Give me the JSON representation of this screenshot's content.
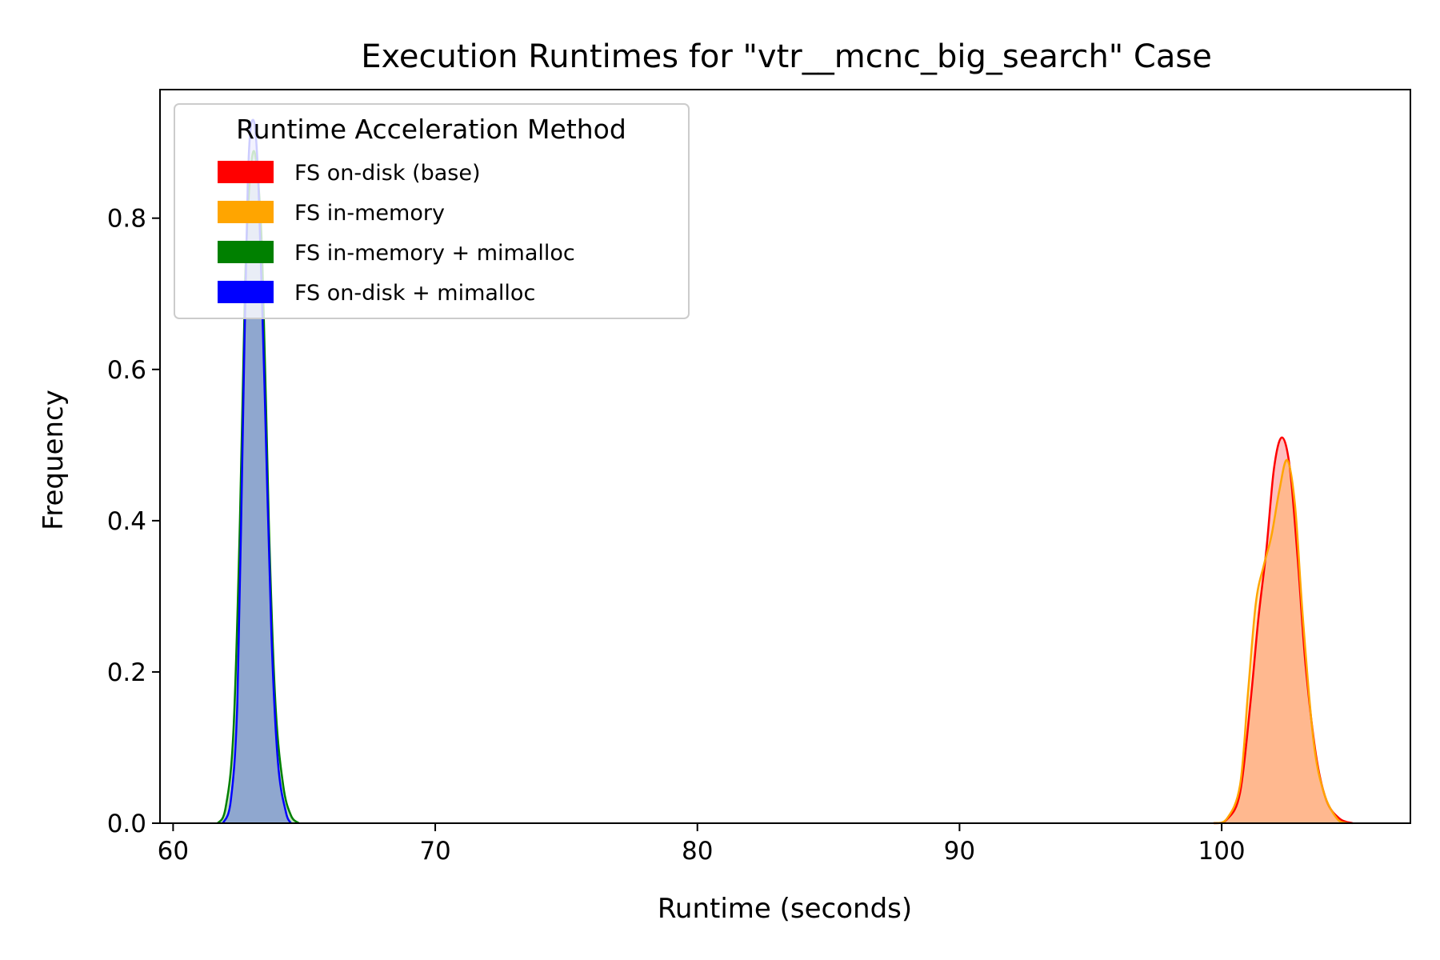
{
  "chart_data": {
    "type": "area",
    "title": "Execution Runtimes for \"vtr__mcnc_big_search\" Case",
    "xlabel": "Runtime (seconds)",
    "ylabel": "Frequency",
    "xlim": [
      59.5,
      107.2
    ],
    "ylim": [
      0,
      0.97
    ],
    "x_ticks": [
      60,
      70,
      80,
      90,
      100
    ],
    "y_ticks": [
      0.0,
      0.2,
      0.4,
      0.6,
      0.8
    ],
    "x_tick_labels": [
      "60",
      "70",
      "80",
      "90",
      "100"
    ],
    "y_tick_labels": [
      "0.0",
      "0.2",
      "0.4",
      "0.6",
      "0.8"
    ],
    "grid": false,
    "legend": {
      "title": "Runtime Acceleration Method",
      "placement": "top-left"
    },
    "series": [
      {
        "name": "FS on-disk (base)",
        "color": "#ff0000",
        "points": [
          [
            99.7,
            0
          ],
          [
            100.2,
            0.005
          ],
          [
            100.7,
            0.04
          ],
          [
            101.1,
            0.16
          ],
          [
            101.4,
            0.27
          ],
          [
            101.7,
            0.36
          ],
          [
            102.0,
            0.47
          ],
          [
            102.3,
            0.51
          ],
          [
            102.6,
            0.47
          ],
          [
            102.9,
            0.35
          ],
          [
            103.2,
            0.21
          ],
          [
            103.6,
            0.09
          ],
          [
            104.0,
            0.03
          ],
          [
            104.5,
            0.006
          ],
          [
            105.0,
            0
          ]
        ]
      },
      {
        "name": "FS in-memory",
        "color": "#ffa500",
        "points": [
          [
            99.7,
            0
          ],
          [
            100.2,
            0.006
          ],
          [
            100.7,
            0.05
          ],
          [
            101.0,
            0.17
          ],
          [
            101.3,
            0.29
          ],
          [
            101.6,
            0.34
          ],
          [
            101.9,
            0.38
          ],
          [
            102.2,
            0.44
          ],
          [
            102.5,
            0.48
          ],
          [
            102.8,
            0.42
          ],
          [
            103.1,
            0.27
          ],
          [
            103.5,
            0.11
          ],
          [
            103.9,
            0.04
          ],
          [
            104.4,
            0.006
          ],
          [
            104.8,
            0
          ]
        ]
      },
      {
        "name": "FS in-memory + mimalloc",
        "color": "#008000",
        "points": [
          [
            61.7,
            0
          ],
          [
            62.0,
            0.02
          ],
          [
            62.3,
            0.12
          ],
          [
            62.55,
            0.4
          ],
          [
            62.75,
            0.72
          ],
          [
            62.95,
            0.86
          ],
          [
            63.15,
            0.88
          ],
          [
            63.4,
            0.75
          ],
          [
            63.65,
            0.4
          ],
          [
            63.9,
            0.16
          ],
          [
            64.2,
            0.05
          ],
          [
            64.5,
            0.01
          ],
          [
            64.8,
            0
          ]
        ]
      },
      {
        "name": "FS on-disk + mimalloc",
        "color": "#0000ff",
        "points": [
          [
            61.9,
            0
          ],
          [
            62.2,
            0.03
          ],
          [
            62.45,
            0.16
          ],
          [
            62.65,
            0.5
          ],
          [
            62.85,
            0.85
          ],
          [
            63.05,
            0.93
          ],
          [
            63.25,
            0.85
          ],
          [
            63.5,
            0.56
          ],
          [
            63.75,
            0.25
          ],
          [
            64.0,
            0.08
          ],
          [
            64.3,
            0.015
          ],
          [
            64.5,
            0
          ]
        ]
      }
    ]
  }
}
